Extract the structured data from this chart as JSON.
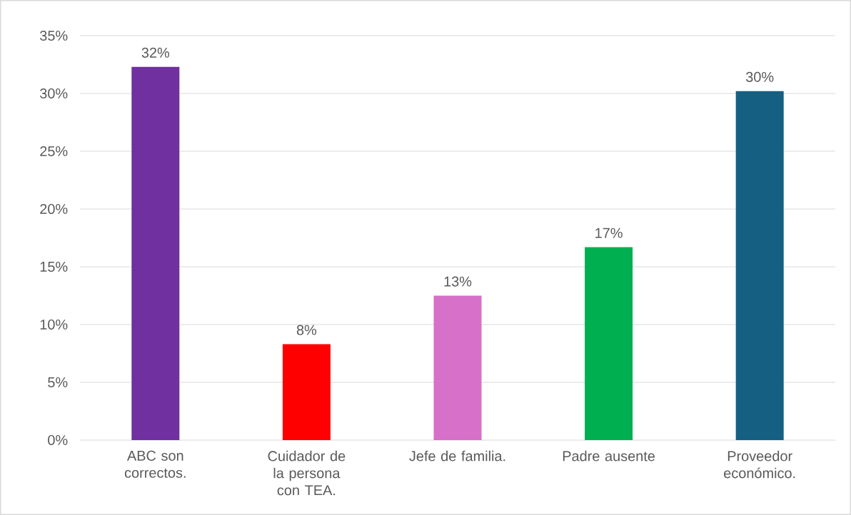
{
  "chart_data": {
    "type": "bar",
    "categories": [
      "ABC son correctos.",
      "Cuidador de la persona con TEA.",
      "Jefe de familia.",
      "Padre ausente",
      "Proveedor económico."
    ],
    "values": [
      32.3,
      8.3,
      12.5,
      16.7,
      30.2
    ],
    "colors": [
      "#7030a0",
      "#ff0000",
      "#d670c8",
      "#00b050",
      "#155f82"
    ],
    "value_labels": [
      "32%",
      "8%",
      "13%",
      "17%",
      "30%"
    ],
    "ylim": [
      0,
      35
    ],
    "yticks": [
      {
        "value": 0,
        "label": "0%"
      },
      {
        "value": 5,
        "label": "5%"
      },
      {
        "value": 10,
        "label": "10%"
      },
      {
        "value": 15,
        "label": "15%"
      },
      {
        "value": 20,
        "label": "20%"
      },
      {
        "value": 25,
        "label": "25%"
      },
      {
        "value": 30,
        "label": "30%"
      },
      {
        "value": 35,
        "label": "35%"
      }
    ],
    "grid": "y"
  }
}
